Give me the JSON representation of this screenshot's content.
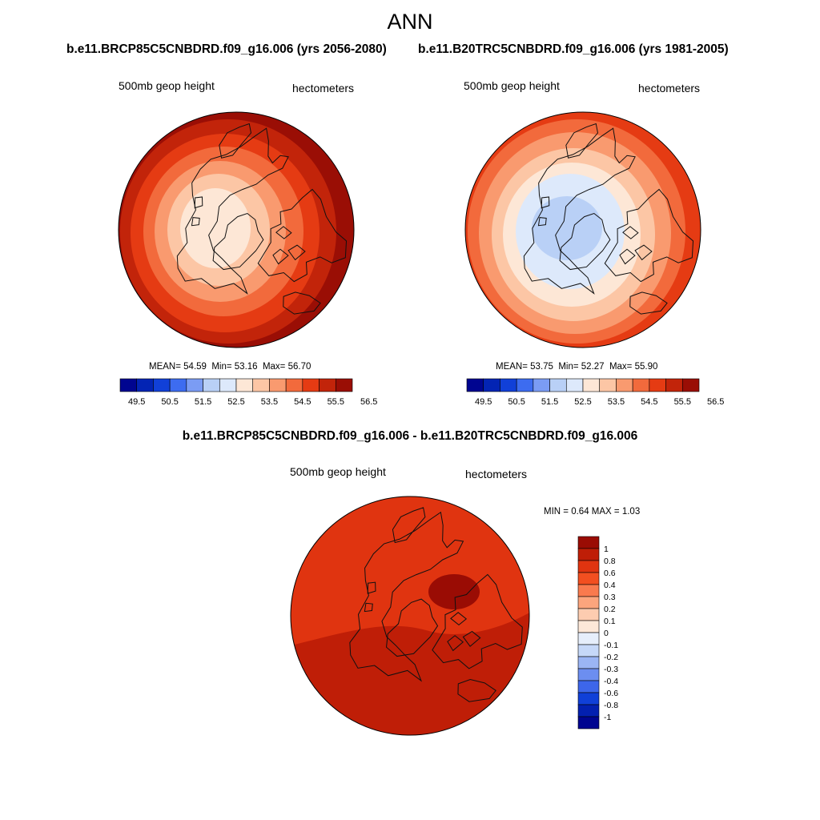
{
  "season": "ANN",
  "colors": {
    "abs_palette": [
      "#000590",
      "#0324b4",
      "#1140d8",
      "#3d6cf0",
      "#7b9cf4",
      "#b9d0f6",
      "#dde9fb",
      "#fde7d6",
      "#fcc6a5",
      "#f99a6f",
      "#f26a3c",
      "#e53b13",
      "#c2240a",
      "#9a0e05"
    ],
    "diff_palette": [
      "#000590",
      "#0320b0",
      "#1040d8",
      "#3d66ea",
      "#6c8ef0",
      "#9bb5f4",
      "#c6d8f8",
      "#e6eefb",
      "#fde8d8",
      "#fdccb0",
      "#fca57d",
      "#f97a4e",
      "#f24f20",
      "#e03410",
      "#bf1e07",
      "#9a0c04"
    ],
    "land_stroke": "#111111"
  },
  "panels": [
    {
      "title": "b.e11.BRCP85C5CNBDRD.f09_g16.006 (yrs 2056-2080)",
      "variable": "500mb geop height",
      "units": "hectometers",
      "stats": {
        "mean_label": "MEAN=",
        "mean": "54.59",
        "min_label": "Min=",
        "min": "53.16",
        "max_label": "Max=",
        "max": "56.70"
      },
      "colorbar_ticks": [
        "49.5",
        "50.5",
        "51.5",
        "52.5",
        "53.5",
        "54.5",
        "55.5",
        "56.5"
      ],
      "map_levels": [
        {
          "value": 56.7,
          "color_index": 13
        },
        {
          "value": 56.2,
          "color_index": 12
        },
        {
          "value": 55.7,
          "color_index": 11
        },
        {
          "value": 55.2,
          "color_index": 10
        },
        {
          "value": 54.7,
          "color_index": 9
        },
        {
          "value": 54.2,
          "color_index": 8
        },
        {
          "value": 53.7,
          "color_index": 7
        }
      ]
    },
    {
      "title": "b.e11.B20TRC5CNBDRD.f09_g16.006 (yrs 1981-2005)",
      "variable": "500mb geop height",
      "units": "hectometers",
      "stats": {
        "mean_label": "MEAN=",
        "mean": "53.75",
        "min_label": "Min=",
        "min": "52.27",
        "max_label": "Max=",
        "max": "55.90"
      },
      "colorbar_ticks": [
        "49.5",
        "50.5",
        "51.5",
        "52.5",
        "53.5",
        "54.5",
        "55.5",
        "56.5"
      ],
      "map_levels": [
        {
          "value": 55.9,
          "color_index": 11
        },
        {
          "value": 55.4,
          "color_index": 10
        },
        {
          "value": 54.9,
          "color_index": 9
        },
        {
          "value": 54.4,
          "color_index": 8
        },
        {
          "value": 53.9,
          "color_index": 7
        },
        {
          "value": 53.3,
          "color_index": 6
        },
        {
          "value": 52.8,
          "color_index": 5
        }
      ]
    },
    {
      "title": "b.e11.BRCP85C5CNBDRD.f09_g16.006 - b.e11.B20TRC5CNBDRD.f09_g16.006",
      "variable": "500mb geop height",
      "units": "hectometers",
      "stats": {
        "min_label": "MIN =",
        "min": "0.64",
        "max_label": "MAX =",
        "max": "1.03"
      },
      "colorbar_ticks": [
        "1",
        "0.8",
        "0.6",
        "0.4",
        "0.3",
        "0.2",
        "0.1",
        "0",
        "-0.1",
        "-0.2",
        "-0.3",
        "-0.4",
        "-0.6",
        "-0.8",
        "-1"
      ],
      "map_levels": [
        {
          "value": 0.9,
          "color_index": 14
        },
        {
          "value": 0.8,
          "color_index": 13
        },
        {
          "value": 1.0,
          "color_index": 15
        }
      ]
    }
  ]
}
